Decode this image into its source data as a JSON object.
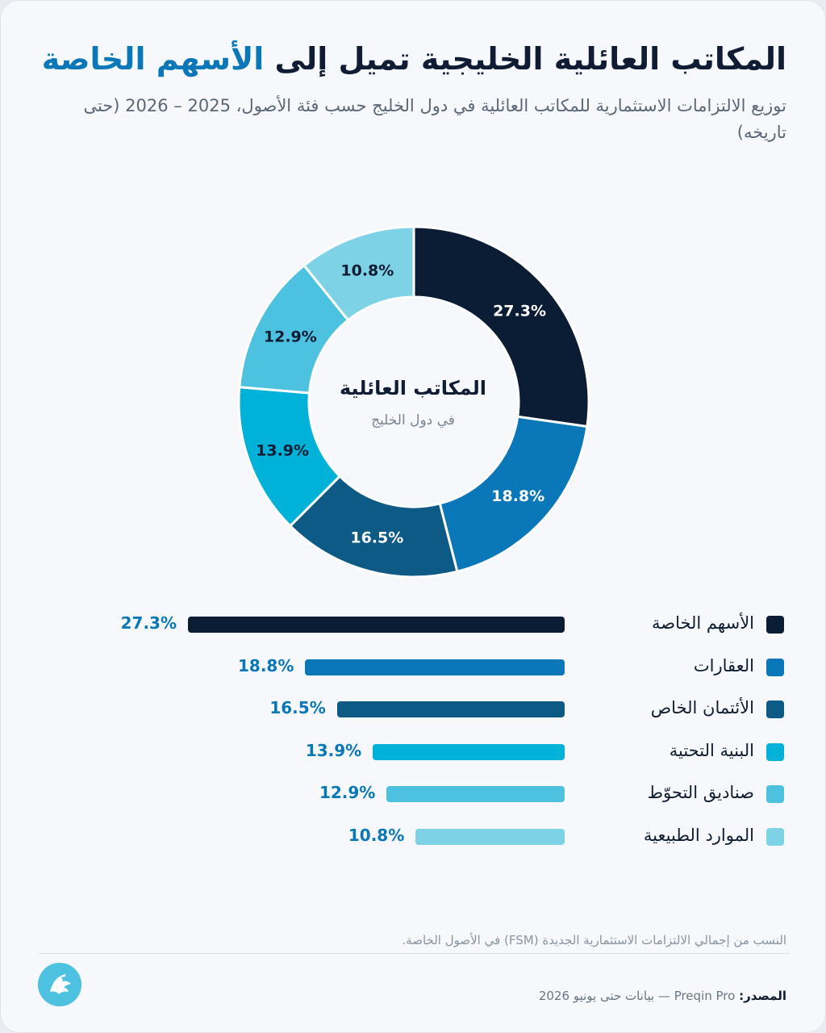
{
  "header": {
    "title_main": "المكاتب العائلية الخليجية تميل إلى",
    "title_accent": "الأسهم الخاصة",
    "subtitle": "توزيع الالتزامات الاستثمارية للمكاتب العائلية في دول الخليج حسب فئة الأصول، 2025 – 2026 (حتى تاريخه)"
  },
  "donut_center": {
    "title": "المكاتب العائلية",
    "subtitle": "في دول الخليج"
  },
  "chart_data": {
    "type": "pie",
    "style": "donut",
    "categories": [
      "الأسهم الخاصة",
      "العقارات",
      "الأئتمان الخاص",
      "البنية التحتية",
      "صناديق التحوّط",
      "الموارد الطبيعية"
    ],
    "values": [
      27.3,
      18.8,
      16.5,
      13.9,
      12.9,
      10.8
    ],
    "value_labels": [
      "27.3%",
      "18.8%",
      "16.5%",
      "13.9%",
      "12.9%",
      "10.8%"
    ],
    "colors": [
      "#0b1c35",
      "#0a78b8",
      "#0d5a87",
      "#00b2d8",
      "#4cc1e0",
      "#7dd3e5"
    ],
    "label_colors": [
      "#ffffff",
      "#ffffff",
      "#ffffff",
      "#0f1c33",
      "#0f1c33",
      "#0f1c33"
    ],
    "unit": "%",
    "legend_position": "bottom"
  },
  "footer": {
    "note": "النسب من إجمالي الالتزامات الاستثمارية الجديدة (FSM) في الأصول الخاصة.",
    "source_label": "المصدر:",
    "source_text": "Preqin Pro — بيانات حتى يونيو 2026"
  },
  "logo_icon": "falcon-logo-icon"
}
